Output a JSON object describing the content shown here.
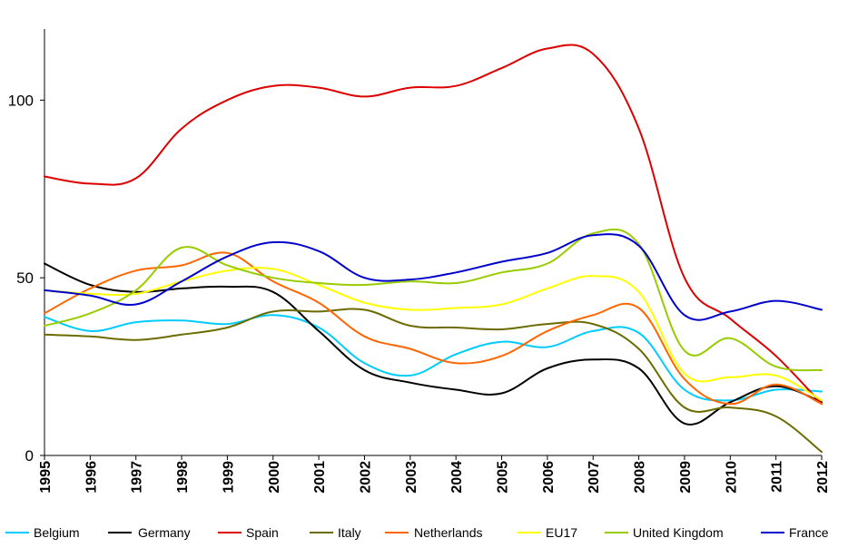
{
  "chart_data": {
    "type": "line",
    "title": "",
    "xlabel": "",
    "ylabel": "",
    "ylim": [
      0,
      120
    ],
    "yticks": [
      "0",
      "50",
      "100"
    ],
    "ytick_values": [
      0,
      50,
      100
    ],
    "x": [
      "1995",
      "1996",
      "1997",
      "1998",
      "1999",
      "2000",
      "2001",
      "2002",
      "2003",
      "2004",
      "2005",
      "2006",
      "2007",
      "2008",
      "2009",
      "2010",
      "2011",
      "2012"
    ],
    "legend_position": "bottom",
    "grid": false,
    "series": [
      {
        "name": "Belgium",
        "color": "#00ccff",
        "values": [
          39,
          35,
          37.5,
          38,
          37,
          39.5,
          36,
          26,
          22.5,
          28.5,
          32,
          30.5,
          35,
          34.5,
          18.5,
          15.5,
          18.5,
          18
        ]
      },
      {
        "name": "Germany",
        "color": "#000000",
        "values": [
          54,
          48,
          46,
          47,
          47.5,
          46,
          35,
          24,
          20.5,
          18.5,
          17.5,
          24.5,
          27,
          24.5,
          9,
          15,
          19.5,
          15
        ]
      },
      {
        "name": "Spain",
        "color": "#dd0000",
        "values": [
          78.5,
          76.5,
          78,
          92,
          100,
          104,
          103.5,
          101,
          103.5,
          104,
          109,
          114.5,
          113,
          92,
          50,
          38.5,
          28,
          14.5
        ]
      },
      {
        "name": "Italy",
        "color": "#6b6b00",
        "values": [
          34,
          33.5,
          32.5,
          34,
          36,
          40.5,
          40.5,
          41,
          36.5,
          36,
          35.5,
          37,
          37,
          30,
          13.5,
          13.5,
          11,
          1
        ]
      },
      {
        "name": "Netherlands",
        "color": "#ff6600",
        "values": [
          40,
          47,
          52,
          53.5,
          57,
          49,
          43,
          33.5,
          30,
          26,
          28,
          35,
          39.5,
          41.5,
          21.5,
          14.5,
          20,
          14.5
        ]
      },
      {
        "name": "EU17",
        "color": "#ffff00",
        "values": [
          46.5,
          45.5,
          45.5,
          49,
          52,
          52.5,
          48,
          43,
          41,
          41.5,
          42.5,
          47,
          50.5,
          46,
          23,
          22,
          22.5,
          15.5
        ]
      },
      {
        "name": "United Kingdom",
        "color": "#99cc00",
        "values": [
          36.5,
          40,
          46.5,
          58.5,
          53.5,
          50,
          48.5,
          48,
          49,
          48.5,
          51.5,
          54,
          62.5,
          59.5,
          29.5,
          33,
          25,
          24
        ]
      },
      {
        "name": "France",
        "color": "#0000cc",
        "values": [
          46.5,
          45,
          42.5,
          49,
          56,
          60,
          57.5,
          50,
          49.5,
          51.5,
          54.5,
          57,
          62,
          59,
          39.5,
          40.5,
          43.5,
          41
        ]
      }
    ]
  }
}
